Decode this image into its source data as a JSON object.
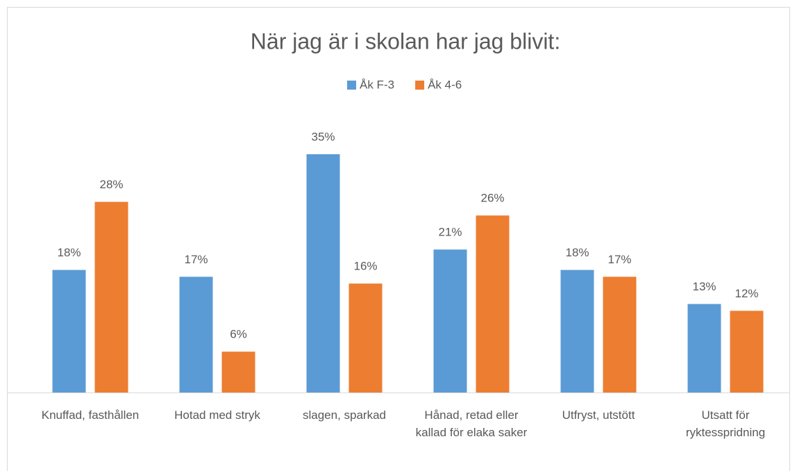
{
  "chart_data": {
    "type": "bar",
    "title": "När jag är i skolan har jag blivit:",
    "categories": [
      "Knuffad, fasthållen",
      "Hotad med stryk",
      "slagen, sparkad",
      "Hånad, retad eller kallad för elaka saker",
      "Utfryst, utstött",
      "Utsatt för ryktesspridning"
    ],
    "series": [
      {
        "name": "Åk F-3",
        "color": "#5b9bd5",
        "values": [
          18,
          17,
          35,
          21,
          18,
          13
        ],
        "value_labels": [
          "18%",
          "17%",
          "35%",
          "21%",
          "18%",
          "13%"
        ]
      },
      {
        "name": "Åk 4-6",
        "color": "#ed7d31",
        "values": [
          28,
          6,
          16,
          26,
          17,
          12
        ],
        "value_labels": [
          "28%",
          "6%",
          "16%",
          "26%",
          "17%",
          "12%"
        ]
      }
    ],
    "legend": "top"
  }
}
